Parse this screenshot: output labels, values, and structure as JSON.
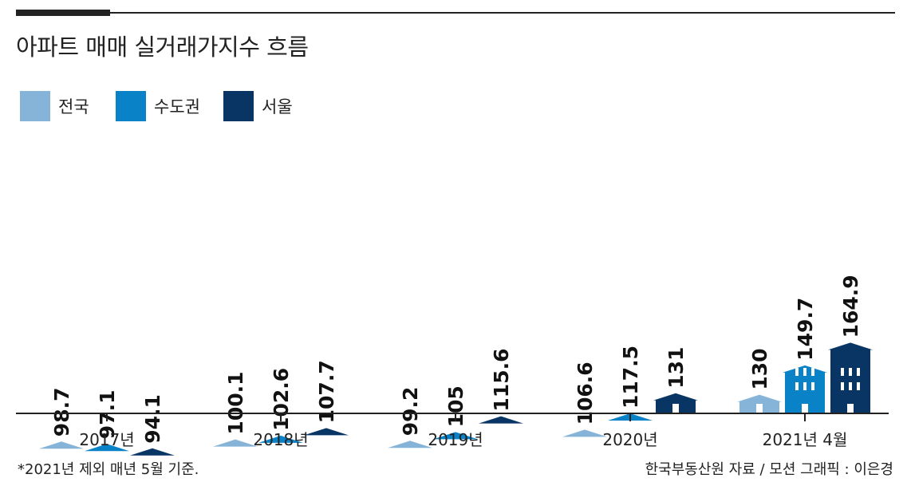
{
  "title": "아파트 매매 실거래가지수 흐름",
  "legend": [
    {
      "label": "전국",
      "color": "#86b4d8"
    },
    {
      "label": "수도권",
      "color": "#0a82c8"
    },
    {
      "label": "서울",
      "color": "#083563"
    }
  ],
  "footnote": "*2021년 제외 매년 5월 기준.",
  "source": "한국부동산원 자료 / 모션 그래픽 : 이은경",
  "chart_data": {
    "type": "bar",
    "title": "아파트 매매 실거래가지수 흐름",
    "categories": [
      "2017년",
      "2018년",
      "2019년",
      "2020년",
      "2021년 4월"
    ],
    "series": [
      {
        "name": "전국",
        "color": "#86b4d8",
        "values": [
          98.7,
          100.1,
          99.2,
          106.6,
          130
        ],
        "labels": [
          "98.7",
          "100.1",
          "99.2",
          "106.6",
          "130"
        ]
      },
      {
        "name": "수도권",
        "color": "#0a82c8",
        "values": [
          97.1,
          102.6,
          105,
          117.5,
          149.7
        ],
        "labels": [
          "97.1",
          "102.6",
          "105",
          "117.5",
          "149.7"
        ]
      },
      {
        "name": "서울",
        "color": "#083563",
        "values": [
          94.1,
          107.7,
          115.6,
          131,
          164.9
        ],
        "labels": [
          "94.1",
          "107.7",
          "115.6",
          "131",
          "164.9"
        ]
      }
    ],
    "xlabel": "",
    "ylabel": "",
    "grid": false,
    "legend_position": "top-left"
  }
}
